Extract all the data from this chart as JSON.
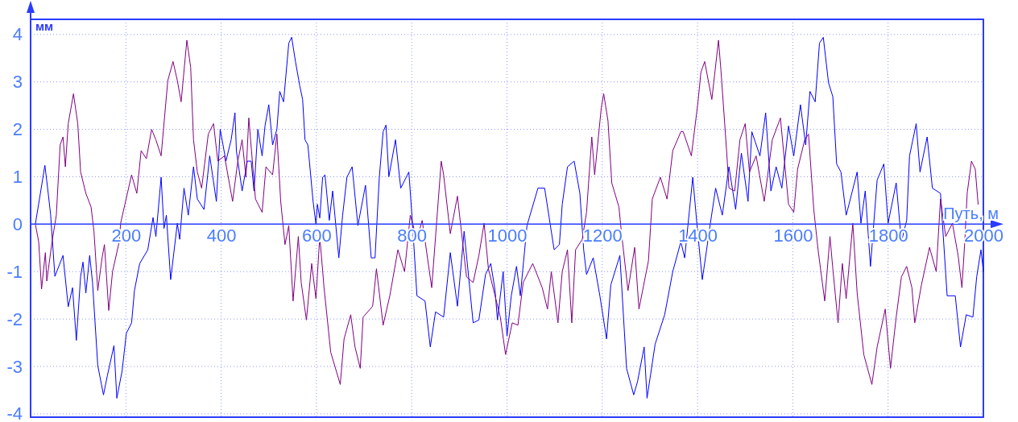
{
  "chart_data": {
    "type": "line",
    "xlabel": "Путь, м",
    "ylabel": "мм",
    "xlim": [
      0,
      2000
    ],
    "ylim": [
      -4.07,
      4.32
    ],
    "xticks": [
      200,
      400,
      600,
      800,
      1000,
      1200,
      1400,
      1600,
      1800,
      2000
    ],
    "yticks": [
      -4,
      -3,
      -2,
      -1,
      0,
      1,
      2,
      3,
      4
    ],
    "grid": true,
    "marker": "none",
    "line_style": "solid",
    "series": [
      {
        "color": "#0000ff",
        "x": [
          10,
          30,
          37,
          42,
          51,
          68,
          79,
          88,
          96,
          105,
          110,
          116,
          124,
          130,
          141,
          153,
          161,
          175,
          181,
          192,
          201,
          212,
          218,
          229,
          246,
          257,
          263,
          274,
          280,
          285,
          294,
          308,
          313,
          322,
          331,
          342,
          350,
          364,
          376,
          390,
          398,
          410,
          421,
          429,
          432,
          444,
          455,
          463,
          469,
          477,
          486,
          492,
          500,
          508,
          517,
          523,
          531,
          542,
          548,
          556,
          565,
          571,
          576,
          582,
          593,
          599,
          602,
          607,
          613,
          618,
          627,
          634,
          647,
          655,
          664,
          675,
          687,
          703,
          715,
          723,
          732,
          740,
          746,
          752,
          766,
          777,
          794,
          802,
          811,
          828,
          839,
          850,
          867,
          881,
          896,
          910,
          929,
          941,
          955,
          966,
          975,
          980,
          992,
          1000,
          1009,
          1020,
          1028,
          1042,
          1065,
          1079,
          1099,
          1110,
          1116,
          1127,
          1141,
          1153,
          1161,
          1167,
          1181,
          1195,
          1209,
          1218,
          1237,
          1251,
          1266,
          1274,
          1288,
          1294,
          1311,
          1331,
          1348,
          1365,
          1373,
          1390,
          1399,
          1410,
          1427,
          1438,
          1452,
          1466,
          1480,
          1492,
          1506,
          1514,
          1531,
          1543,
          1554,
          1565,
          1577,
          1591,
          1602,
          1616,
          1627,
          1636,
          1647,
          1656,
          1664,
          1675,
          1684,
          1692,
          1701,
          1712,
          1718,
          1735,
          1743,
          1752,
          1763,
          1777,
          1791,
          1800,
          1817,
          1828,
          1839,
          1845,
          1859,
          1867,
          1882,
          1893,
          1910,
          1924,
          1941,
          1952,
          1964,
          1978,
          1986,
          1995,
          2000
        ],
        "values": [
          0,
          1.24,
          0.65,
          0.2,
          -1.1,
          -0.66,
          -1.74,
          -1.34,
          -2.45,
          -1.1,
          -0.8,
          -1.45,
          -0.66,
          -1.23,
          -2.98,
          -3.6,
          -3.2,
          -2.56,
          -3.67,
          -3.1,
          -2.3,
          -2.08,
          -1.4,
          -0.83,
          -0.54,
          0.14,
          -0.26,
          0.99,
          -0.09,
          0.19,
          -1.17,
          0.02,
          -0.32,
          0.76,
          0.19,
          1.21,
          0.53,
          0.31,
          1.44,
          0.48,
          2.0,
          1.33,
          1.78,
          2.35,
          1.55,
          0.7,
          1.33,
          1.33,
          0.7,
          2.0,
          1.44,
          2.07,
          2.52,
          1.67,
          2.0,
          2.8,
          2.58,
          3.82,
          3.94,
          3.43,
          2.92,
          2.63,
          1.78,
          1.67,
          0.48,
          0,
          0.42,
          0.13,
          0.99,
          1.04,
          0.08,
          0.7,
          -0.71,
          0.19,
          0.99,
          1.21,
          -0.03,
          0.82,
          -0.71,
          -0.71,
          0.99,
          1.95,
          2.09,
          1.0,
          1.78,
          0.76,
          1.1,
          -0.03,
          -1.51,
          -1.62,
          -2.59,
          -1.85,
          -1.96,
          -0.6,
          -1.73,
          -0.15,
          -2.08,
          -2.02,
          -1.06,
          -0.83,
          -1.4,
          -2.02,
          -1.0,
          -2.36,
          -1.51,
          -0.89,
          -1.51,
          -0.03,
          0.76,
          0.76,
          -0.54,
          -0.43,
          0.42,
          1.21,
          1.33,
          0.65,
          -0.54,
          -1.06,
          -0.71,
          -1.51,
          -2.42,
          -1.28,
          -0.66,
          -3.04,
          -3.6,
          -3.32,
          -2.59,
          -3.67,
          -2.53,
          -1.91,
          -1.0,
          -0.37,
          -0.71,
          0.99,
          -0.03,
          -1.17,
          0.02,
          0.76,
          0.19,
          1.21,
          0.31,
          1.5,
          0.48,
          1.95,
          1.44,
          2.35,
          0.7,
          1.21,
          0.76,
          2.07,
          1.44,
          2.52,
          1.67,
          2.8,
          2.58,
          3.82,
          3.94,
          2.98,
          2.69,
          1.27,
          1.1,
          0.19,
          0.42,
          1.1,
          0.02,
          0.7,
          -0.89,
          0.93,
          1.27,
          0.02,
          0.87,
          -0.37,
          0.08,
          1.44,
          2.12,
          1.1,
          1.84,
          0.76,
          0.65,
          -1.51,
          -1.51,
          -2.59,
          -1.91,
          -1.96,
          -1.11,
          -0.54,
          -1.0
        ]
      },
      {
        "color": "#800080",
        "x": [
          10,
          17,
          23,
          31,
          34,
          45,
          54,
          62,
          68,
          73,
          79,
          90,
          99,
          105,
          116,
          127,
          133,
          141,
          150,
          155,
          164,
          172,
          186,
          189,
          198,
          212,
          223,
          232,
          243,
          254,
          263,
          274,
          288,
          299,
          308,
          316,
          328,
          336,
          342,
          350,
          359,
          373,
          384,
          393,
          407,
          424,
          435,
          444,
          452,
          458,
          472,
          486,
          494,
          508,
          517,
          525,
          534,
          542,
          551,
          562,
          568,
          579,
          590,
          599,
          607,
          616,
          630,
          650,
          658,
          672,
          681,
          692,
          698,
          718,
          726,
          740,
          754,
          771,
          785,
          797,
          811,
          822,
          842,
          862,
          867,
          881,
          896,
          915,
          929,
          941,
          952,
          961,
          975,
          986,
          997,
          1011,
          1023,
          1034,
          1054,
          1074,
          1085,
          1093,
          1107,
          1116,
          1127,
          1136,
          1144,
          1158,
          1167,
          1178,
          1184,
          1198,
          1203,
          1212,
          1220,
          1235,
          1240,
          1254,
          1268,
          1277,
          1297,
          1305,
          1322,
          1336,
          1348,
          1365,
          1370,
          1387,
          1401,
          1407,
          1415,
          1430,
          1444,
          1449,
          1461,
          1466,
          1478,
          1489,
          1500,
          1509,
          1523,
          1540,
          1557,
          1574,
          1591,
          1602,
          1610,
          1625,
          1633,
          1644,
          1653,
          1667,
          1678,
          1684,
          1695,
          1704,
          1712,
          1726,
          1735,
          1749,
          1766,
          1777,
          1794,
          1805,
          1817,
          1828,
          1839,
          1850,
          1856,
          1870,
          1887,
          1901,
          1910,
          1921,
          1935,
          1947,
          1955,
          1961,
          1966,
          1975,
          1983,
          1989
        ],
        "values": [
          0,
          -0.37,
          -1.37,
          -0.6,
          -1.2,
          -0.37,
          0.19,
          1.67,
          1.84,
          1.21,
          2.12,
          2.75,
          2.12,
          1.1,
          0.65,
          0.36,
          -0.15,
          -1.4,
          -0.71,
          -0.43,
          -1.82,
          -1.0,
          -0.37,
          0.02,
          0.42,
          1.04,
          0.65,
          1.55,
          1.38,
          2.0,
          1.78,
          1.44,
          3.03,
          3.43,
          3.03,
          2.58,
          3.88,
          3.31,
          1.78,
          1.1,
          0.76,
          1.9,
          2.12,
          1.33,
          1.44,
          0.48,
          1.33,
          1.78,
          0.99,
          2.24,
          0.53,
          0.25,
          1.21,
          1.04,
          1.9,
          0.48,
          -0.43,
          -0.03,
          -1.62,
          -0.26,
          -1.23,
          -2.02,
          -0.83,
          -1.57,
          -0.26,
          -1.34,
          -2.7,
          -3.38,
          -2.42,
          -1.91,
          -2.59,
          -3.04,
          -1.96,
          -1.73,
          -0.94,
          -2.13,
          -1.51,
          -0.54,
          -1.0,
          0.19,
          -0.32,
          0.08,
          -1.34,
          1.33,
          1.04,
          -0.2,
          0.59,
          -1.11,
          -1.23,
          -0.66,
          0.02,
          -0.94,
          -1.51,
          -1.96,
          -2.75,
          -2.08,
          -2.13,
          -1.23,
          -0.83,
          -1.34,
          -1.79,
          -1.0,
          -2.08,
          -1.0,
          -0.54,
          -2.08,
          -0.54,
          -0.32,
          0.25,
          1.84,
          1.04,
          2.46,
          2.75,
          2.18,
          0.87,
          0.36,
          -0.15,
          -1.4,
          -0.49,
          -1.79,
          -0.77,
          0.53,
          0.99,
          0.53,
          1.55,
          1.95,
          1.95,
          1.44,
          2.58,
          3.2,
          3.43,
          2.63,
          3.88,
          3.26,
          1.55,
          0.76,
          0.7,
          1.78,
          2.12,
          1.1,
          1.44,
          0.48,
          1.78,
          2.24,
          0.42,
          0.25,
          1.16,
          1.78,
          1.9,
          0.31,
          -0.54,
          -1.62,
          -0.26,
          -0.94,
          -2.08,
          -0.83,
          -1.57,
          0.02,
          -1.45,
          -2.75,
          -3.38,
          -2.59,
          -1.79,
          -3.04,
          -1.96,
          -1.11,
          -0.89,
          -1.34,
          -2.08,
          -1.28,
          -0.49,
          -1.0,
          0.53,
          -0.26,
          0.02,
          -0.66,
          -1.34,
          -0.37,
          0.65,
          1.33,
          1.16,
          0.42
        ]
      }
    ]
  }
}
